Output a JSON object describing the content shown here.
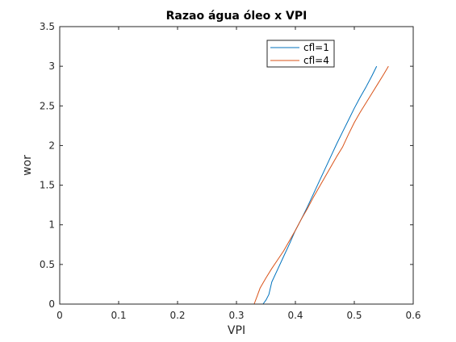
{
  "chart_data": {
    "type": "line",
    "title": "Razao água óleo x VPI",
    "xlabel": "VPI",
    "ylabel": "wor",
    "xlim": [
      0,
      0.6
    ],
    "ylim": [
      0,
      3.5
    ],
    "xticks": [
      0,
      0.1,
      0.2,
      0.3,
      0.4,
      0.5,
      0.6
    ],
    "xtick_labels": [
      "0",
      "0.1",
      "0.2",
      "0.3",
      "0.4",
      "0.5",
      "0.6"
    ],
    "yticks": [
      0,
      0.5,
      1,
      1.5,
      2,
      2.5,
      3,
      3.5
    ],
    "ytick_labels": [
      "0",
      "0.5",
      "1",
      "1.5",
      "2",
      "2.5",
      "3",
      "3.5"
    ],
    "grid": false,
    "legend_position": "top-right",
    "series": [
      {
        "name": "cfl=1",
        "color": "#0072BD",
        "x": [
          0,
          0.1,
          0.2,
          0.3,
          0.345,
          0.35,
          0.355,
          0.36,
          0.37,
          0.38,
          0.39,
          0.4,
          0.41,
          0.42,
          0.43,
          0.44,
          0.45,
          0.46,
          0.47,
          0.48,
          0.49,
          0.5,
          0.51,
          0.52,
          0.53,
          0.538
        ],
        "y": [
          0,
          0,
          0,
          0,
          0,
          0.05,
          0.12,
          0.28,
          0.44,
          0.6,
          0.76,
          0.93,
          1.07,
          1.22,
          1.38,
          1.54,
          1.7,
          1.86,
          2.02,
          2.17,
          2.32,
          2.47,
          2.61,
          2.74,
          2.88,
          3.0
        ]
      },
      {
        "name": "cfl=4",
        "color": "#D95319",
        "x": [
          0,
          0.1,
          0.2,
          0.3,
          0.33,
          0.335,
          0.34,
          0.35,
          0.36,
          0.37,
          0.38,
          0.39,
          0.4,
          0.41,
          0.42,
          0.43,
          0.44,
          0.45,
          0.46,
          0.47,
          0.48,
          0.49,
          0.5,
          0.51,
          0.52,
          0.53,
          0.54,
          0.55,
          0.558
        ],
        "y": [
          0,
          0,
          0,
          0,
          0,
          0.1,
          0.2,
          0.33,
          0.45,
          0.56,
          0.67,
          0.8,
          0.93,
          1.07,
          1.2,
          1.34,
          1.47,
          1.6,
          1.73,
          1.86,
          1.98,
          2.14,
          2.29,
          2.42,
          2.54,
          2.66,
          2.78,
          2.9,
          3.0
        ]
      }
    ]
  }
}
